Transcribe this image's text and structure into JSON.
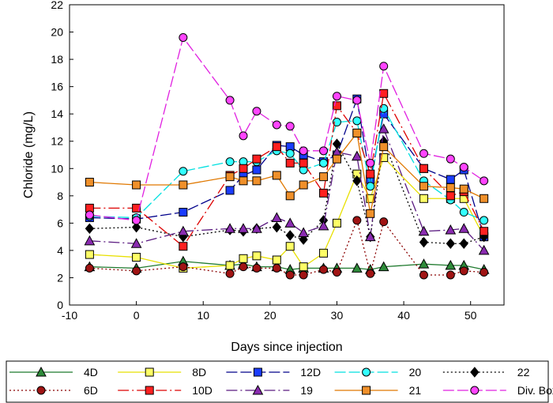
{
  "chart_data": {
    "type": "line",
    "title": "",
    "xlabel": "Days since injection",
    "ylabel": "Chloride (mg/L)",
    "xlim": [
      -10,
      55
    ],
    "ylim": [
      0,
      22
    ],
    "xticks": [
      -10,
      0,
      10,
      20,
      30,
      40,
      50
    ],
    "yticks": [
      0,
      2,
      4,
      6,
      8,
      10,
      12,
      14,
      16,
      18,
      20,
      22
    ],
    "grid": false,
    "legend_position": "bottom",
    "series": [
      {
        "name": "4D",
        "color": "#1f7a2e",
        "marker": "triangle",
        "fill": "#2e8b3a",
        "dash": "",
        "x": [
          -7,
          0,
          7,
          14,
          16,
          18,
          21,
          23,
          25,
          28,
          30,
          33,
          35,
          37,
          43,
          47,
          49,
          52
        ],
        "y": [
          2.8,
          2.7,
          3.2,
          2.9,
          3.0,
          2.8,
          2.8,
          2.6,
          2.7,
          2.7,
          2.7,
          2.7,
          2.6,
          2.8,
          3.0,
          2.9,
          2.9,
          2.6
        ]
      },
      {
        "name": "8D",
        "color": "#e8e000",
        "marker": "square",
        "fill": "#ffff66",
        "dash": "",
        "x": [
          -7,
          0,
          7,
          14,
          16,
          18,
          21,
          23,
          25,
          28,
          30,
          33,
          35,
          37,
          43,
          47,
          49,
          52
        ],
        "y": [
          3.7,
          3.5,
          2.7,
          2.9,
          3.4,
          3.6,
          3.3,
          4.3,
          2.8,
          3.8,
          6.0,
          9.6,
          7.8,
          10.8,
          7.8,
          7.8,
          7.8,
          5.0
        ]
      },
      {
        "name": "12D",
        "color": "#00008b",
        "marker": "square",
        "fill": "#1a3cff",
        "dash": "14,4",
        "x": [
          -7,
          0,
          7,
          14,
          16,
          18,
          21,
          23,
          25,
          28,
          30,
          33,
          35,
          37,
          43,
          47,
          49,
          52
        ],
        "y": [
          6.4,
          6.3,
          6.8,
          8.4,
          9.5,
          9.9,
          11.7,
          11.6,
          11.0,
          10.5,
          11.0,
          15.1,
          9.2,
          14.0,
          10.0,
          9.2,
          9.9,
          5.0
        ]
      },
      {
        "name": "20",
        "color": "#00e0e0",
        "marker": "circle",
        "fill": "#33ffff",
        "dash": "14,4",
        "x": [
          -7,
          0,
          7,
          14,
          16,
          18,
          21,
          23,
          25,
          28,
          30,
          33,
          35,
          37,
          43,
          47,
          49,
          52
        ],
        "y": [
          6.5,
          6.4,
          9.8,
          10.5,
          10.5,
          10.5,
          11.3,
          11.1,
          9.9,
          10.4,
          13.4,
          13.5,
          8.7,
          14.4,
          9.1,
          7.7,
          6.8,
          6.2
        ]
      },
      {
        "name": "22",
        "color": "#000000",
        "marker": "diamond",
        "fill": "#000000",
        "dash": "2,3",
        "x": [
          -7,
          0,
          7,
          14,
          16,
          18,
          21,
          23,
          25,
          28,
          30,
          33,
          35,
          37,
          43,
          47,
          49,
          52
        ],
        "y": [
          5.6,
          5.7,
          5.0,
          5.5,
          5.4,
          5.6,
          5.7,
          5.1,
          4.8,
          6.2,
          11.8,
          9.1,
          5.0,
          12.0,
          4.6,
          4.5,
          4.5,
          5.0
        ]
      },
      {
        "name": "6D",
        "color": "#8b0000",
        "marker": "circle",
        "fill": "#a01414",
        "dash": "2,3",
        "x": [
          -7,
          0,
          7,
          14,
          16,
          18,
          21,
          23,
          25,
          28,
          30,
          33,
          35,
          37,
          43,
          47,
          49,
          52
        ],
        "y": [
          2.7,
          2.5,
          2.8,
          2.3,
          2.8,
          2.7,
          2.7,
          2.2,
          2.2,
          2.6,
          2.4,
          6.2,
          2.3,
          6.1,
          2.2,
          2.2,
          2.5,
          2.4
        ]
      },
      {
        "name": "10D",
        "color": "#dd0000",
        "marker": "square",
        "fill": "#ff2020",
        "dash": "14,4,2,4",
        "x": [
          -7,
          0,
          7,
          14,
          16,
          18,
          21,
          23,
          25,
          28,
          30,
          33,
          35,
          37,
          43,
          47,
          49,
          52
        ],
        "y": [
          7.1,
          7.1,
          4.3,
          9.5,
          10.0,
          10.7,
          11.6,
          10.4,
          10.4,
          8.2,
          14.6,
          12.6,
          9.6,
          15.5,
          10.0,
          8.0,
          8.3,
          5.4
        ]
      },
      {
        "name": "19",
        "color": "#5a1a80",
        "marker": "triangle",
        "fill": "#8a2bb0",
        "dash": "14,4,2,4",
        "x": [
          -7,
          0,
          7,
          14,
          16,
          18,
          21,
          23,
          25,
          28,
          30,
          33,
          35,
          37,
          43,
          47,
          49,
          52
        ],
        "y": [
          4.7,
          4.5,
          5.4,
          5.6,
          5.6,
          5.6,
          6.4,
          6.0,
          5.3,
          5.8,
          11.2,
          10.9,
          5.0,
          12.9,
          5.4,
          5.5,
          5.6,
          4.0
        ]
      },
      {
        "name": "21",
        "color": "#e07800",
        "marker": "square",
        "fill": "#f0902a",
        "dash": "",
        "x": [
          -7,
          0,
          7,
          14,
          16,
          18,
          21,
          23,
          25,
          28,
          30,
          33,
          35,
          37,
          43,
          47,
          49,
          52
        ],
        "y": [
          9.0,
          8.8,
          8.8,
          9.4,
          9.1,
          9.1,
          9.5,
          8.0,
          8.8,
          9.4,
          10.7,
          12.6,
          6.7,
          11.6,
          8.7,
          8.6,
          8.5,
          7.8
        ]
      },
      {
        "name": "Div. Box",
        "color": "#e020e0",
        "marker": "circle",
        "fill": "#ff44ff",
        "dash": "14,4",
        "x": [
          -7,
          0,
          7,
          14,
          16,
          18,
          21,
          23,
          25,
          28,
          30,
          33,
          35,
          37,
          43,
          47,
          49,
          52
        ],
        "y": [
          6.6,
          6.2,
          19.6,
          15.0,
          12.4,
          14.2,
          13.2,
          13.1,
          11.3,
          11.3,
          15.3,
          15.0,
          10.4,
          17.5,
          11.1,
          10.7,
          10.1,
          9.1
        ]
      }
    ]
  }
}
